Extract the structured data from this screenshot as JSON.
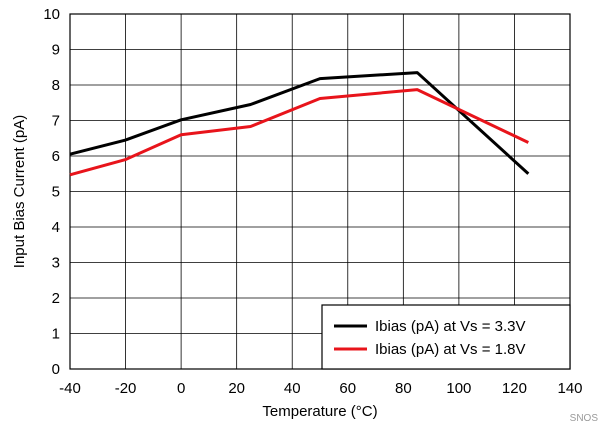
{
  "chart_data": {
    "type": "line",
    "xlabel": "Temperature (°C)",
    "ylabel": "Input Bias Current (pA)",
    "xlim": [
      -40,
      140
    ],
    "ylim": [
      0,
      10
    ],
    "x_ticks": [
      -40,
      -20,
      0,
      20,
      40,
      60,
      80,
      100,
      120,
      140
    ],
    "y_ticks": [
      0,
      1,
      2,
      3,
      4,
      5,
      6,
      7,
      8,
      9,
      10
    ],
    "grid": true,
    "legend_position": "bottom-right",
    "series": [
      {
        "name": "Ibias (pA) at Vs = 3.3V",
        "color": "#000000",
        "x": [
          -40,
          -20,
          0,
          25,
          50,
          85,
          125
        ],
        "y": [
          6.05,
          6.45,
          7.02,
          7.45,
          8.18,
          8.35,
          5.5
        ]
      },
      {
        "name": "Ibias (pA) at Vs = 1.8V",
        "color": "#e8141b",
        "x": [
          -40,
          -20,
          0,
          25,
          50,
          85,
          125
        ],
        "y": [
          5.47,
          5.9,
          6.6,
          6.83,
          7.62,
          7.87,
          6.38
        ]
      }
    ]
  },
  "watermark": "SNOS"
}
